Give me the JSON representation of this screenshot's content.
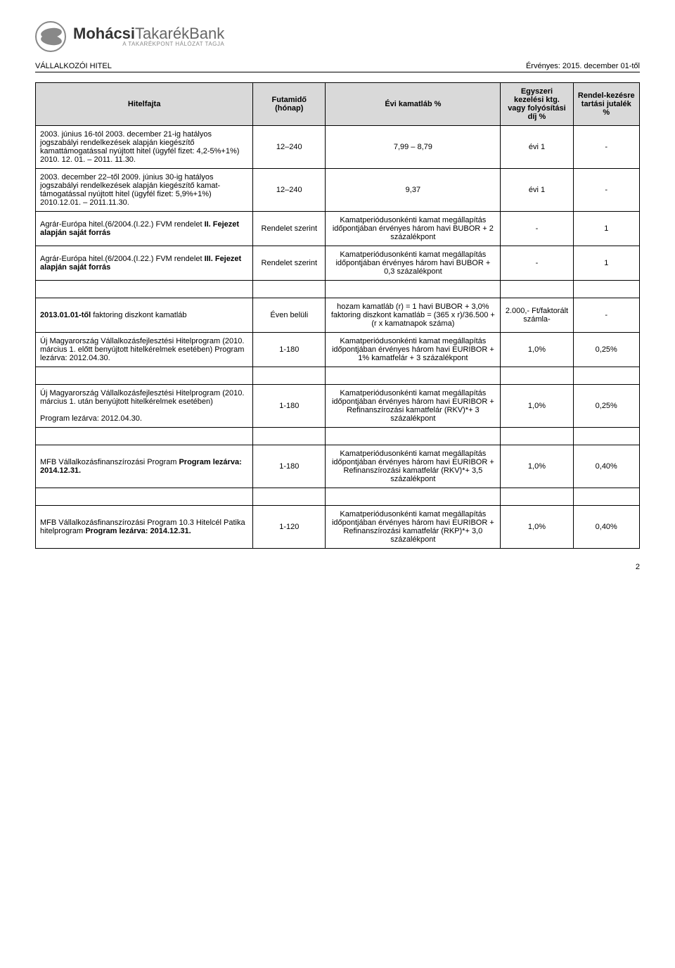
{
  "logo": {
    "name_bold": "Mohácsi",
    "name_light1": "Takarék",
    "name_light2": "Bank",
    "tagline": "A TAKARÉKPONT HÁLÓZAT TAGJA"
  },
  "header": {
    "left": "VÁLLALKOZÓI HITEL",
    "right": "Érvényes: 2015. december 01-től"
  },
  "table": {
    "head": {
      "c1": "Hitelfajta",
      "c2": "Futamidő (hónap)",
      "c3": "Évi kamatláb %",
      "c4": "Egyszeri kezelési ktg. vagy folyósítási díj %",
      "c5": "Rendel-kezésre tartási jutalék %"
    },
    "rows": [
      {
        "c1": "2003. június 16-tól 2003. december 21-ig hatályos jogszabályi rendelkezések alapján kiegészítő kamattámogatással nyújtott hitel (ügyfél fizet: 4,2-5%+1%) 2010. 12. 01. – 2011. 11.30.",
        "c2": "12–240",
        "c3": "7,99 – 8,79",
        "c4": "évi 1",
        "c5": "-"
      },
      {
        "c1": "2003. december 22–től 2009. június 30-ig hatályos jogszabályi rendelkezések alapján kiegészítő kamat-támogatással nyújtott hitel (ügyfél fizet: 5,9%+1%) 2010.12.01. – 2011.11.30.",
        "c2": "12–240",
        "c3": "9,37",
        "c4": "évi 1",
        "c5": "-"
      },
      {
        "c1_pre": "Agrár-Európa hitel.(6/2004.(I.22.) FVM rendelet ",
        "c1_bold": "II. Fejezet alapján saját forrás",
        "c2": "Rendelet szerint",
        "c3": "Kamatperiódusonkénti kamat megállapítás időpontjában érvényes három havi BUBOR + 2 százalékpont",
        "c4": "-",
        "c5": "1"
      },
      {
        "c1_pre": "Agrár-Európa hitel.(6/2004.(I.22.) FVM rendelet ",
        "c1_bold": "III. Fejezet alapján saját forrás",
        "c2": "Rendelet szerint",
        "c3": "Kamatperiódusonkénti kamat megállapítás időpontjában érvényes három havi BUBOR + 0,3 százalékpont",
        "c4": "-",
        "c5": "1"
      },
      {
        "c1_bold": "2013.01.01-től",
        "c1_post": " faktoring diszkont kamatláb",
        "c2": "Éven belüli",
        "c3": "hozam kamatláb (r) = 1 havi BUBOR + 3,0% faktoring diszkont kamatláb = (365 x r)/36.500 + (r x kamatnapok száma)",
        "c4": "2.000,- Ft/faktorált számla-",
        "c5": "-"
      },
      {
        "c1": "Új Magyarország Vállalkozásfejlesztési Hitelprogram (2010. március 1. előtt benyújtott hitelkérelmek esetében) Program lezárva: 2012.04.30.",
        "c2": "1-180",
        "c3": "Kamatperiódusonkénti kamat megállapítás időpontjában érvényes három havi EURIBOR + 1% kamatfelár + 3 százalékpont",
        "c4": "1,0%",
        "c5": "0,25%"
      },
      {
        "c1_pre": "Új Magyarország Vállalkozásfejlesztési Hitelprogram (2010. március 1. után benyújtott hitelkérelmek esetében)",
        "c1_br": true,
        "c1_post": "Program lezárva: 2012.04.30.",
        "c2": "1-180",
        "c3": "Kamatperiódusonkénti kamat megállapítás időpontjában érvényes három havi EURIBOR + Refinanszírozási kamatfelár (RKV)*+ 3 százalékpont",
        "c4": "1,0%",
        "c5": "0,25%"
      },
      {
        "c1_pre": "MFB Vállalkozásfinanszírozási Program ",
        "c1_bold": "Program lezárva: 2014.12.31.",
        "c2": "1-180",
        "c3": "Kamatperiódusonkénti kamat megállapítás időpontjában érvényes három havi EURIBOR + Refinanszírozási kamatfelár (RKV)*+ 3,5 százalékpont",
        "c4": "1,0%",
        "c5": "0,40%"
      },
      {
        "c1_pre": "MFB Vállalkozásfinanszírozási Program 10.3 Hitelcél Patika hitelprogram ",
        "c1_bold": "Program lezárva: 2014.12.31.",
        "c2": "1-120",
        "c3": "Kamatperiódusonkénti kamat megállapítás időpontjában érvényes három havi EURIBOR + Refinanszírozási kamatfelár (RKP)*+ 3,0 százalékpont",
        "c4": "1,0%",
        "c5": "0,40%"
      }
    ]
  },
  "page_number": "2"
}
